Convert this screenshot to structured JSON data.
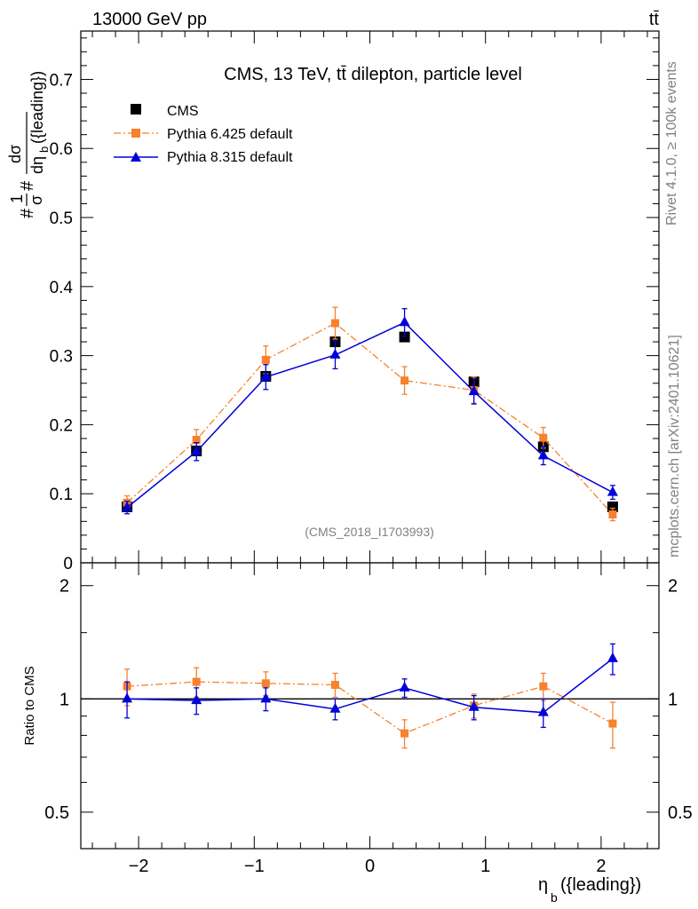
{
  "header": {
    "left": "13000 GeV pp",
    "right": "tt̄"
  },
  "side_labels": {
    "rivet": "Rivet 4.1.0, ≥ 100k events",
    "mcplots": "mcplots.cern.ch [arXiv:2401.10621]"
  },
  "colors": {
    "cms": "#000000",
    "pythia6": "#f7812c",
    "pythia8": "#0000d8",
    "watermark": "#808080"
  },
  "chart_data": [
    {
      "type": "scatter",
      "panel": "main",
      "title": "CMS, 13 TeV, tt̄ dilepton, particle level",
      "watermark": "(CMS_2018_I1703993)",
      "xlim": [
        -2.5,
        2.5
      ],
      "ylim": [
        0,
        0.77
      ],
      "ylabel_parts": {
        "prefix": "#",
        "frac_num": "1",
        "frac_den": "σ",
        "mid": "#",
        "d_num": "dσ",
        "d_den": "dη",
        "sub": "b",
        "tail": "({leading})"
      },
      "y_ticks": [
        {
          "v": 0.1,
          "label": "0.1"
        },
        {
          "v": 0.2,
          "label": "0.2"
        },
        {
          "v": 0.3,
          "label": "0.3"
        },
        {
          "v": 0.4,
          "label": "0.4"
        },
        {
          "v": 0.5,
          "label": "0.5"
        },
        {
          "v": 0.6,
          "label": "0.6"
        },
        {
          "v": 0.7,
          "label": "0.7"
        },
        {
          "v": 0.0,
          "label": "0"
        }
      ],
      "x": [
        -2.1,
        -1.5,
        -0.9,
        -0.3,
        0.3,
        0.9,
        1.5,
        2.1
      ],
      "series": [
        {
          "name": "CMS",
          "style": "points",
          "values": [
            0.081,
            0.162,
            0.27,
            0.32,
            0.327,
            0.262,
            0.168,
            0.081
          ],
          "errors": [
            0.003,
            0.004,
            0.006,
            0.006,
            0.006,
            0.005,
            0.004,
            0.003
          ]
        },
        {
          "name": "Pythia 6.425 default",
          "style": "dashdot-square",
          "values": [
            0.087,
            0.178,
            0.294,
            0.347,
            0.264,
            0.25,
            0.181,
            0.07
          ],
          "errors": [
            0.01,
            0.015,
            0.02,
            0.023,
            0.02,
            0.019,
            0.015,
            0.009
          ]
        },
        {
          "name": "Pythia 8.315 default",
          "style": "solid-triangle",
          "values": [
            0.08,
            0.161,
            0.269,
            0.301,
            0.348,
            0.248,
            0.155,
            0.102
          ],
          "errors": [
            0.009,
            0.013,
            0.018,
            0.02,
            0.02,
            0.018,
            0.013,
            0.01
          ]
        }
      ]
    },
    {
      "type": "scatter",
      "panel": "ratio",
      "ylabel": "Ratio to CMS",
      "xlabel_parts": {
        "main": "η",
        "sub": "b",
        "tail": "({leading})"
      },
      "xlim": [
        -2.5,
        2.5
      ],
      "ylim": [
        0.4,
        2.3
      ],
      "y_ticks": [
        {
          "v": 0.5,
          "label": "0.5"
        },
        {
          "v": 1,
          "label": "1"
        },
        {
          "v": 2,
          "label": "2"
        }
      ],
      "x_ticks": [
        {
          "v": -2,
          "label": "−2"
        },
        {
          "v": -1,
          "label": "−1"
        },
        {
          "v": 0,
          "label": "0"
        },
        {
          "v": 1,
          "label": "1"
        },
        {
          "v": 2,
          "label": "2"
        }
      ],
      "reference_line": 1,
      "x": [
        -2.1,
        -1.5,
        -0.9,
        -0.3,
        0.3,
        0.9,
        1.5,
        2.1
      ],
      "series": [
        {
          "name": "Pythia 6.425 default",
          "style": "dashdot-square",
          "values": [
            1.08,
            1.11,
            1.1,
            1.09,
            0.81,
            0.96,
            1.08,
            0.86
          ],
          "errors": [
            0.12,
            0.1,
            0.08,
            0.08,
            0.07,
            0.07,
            0.09,
            0.12
          ]
        },
        {
          "name": "Pythia 8.315 default",
          "style": "solid-triangle",
          "values": [
            1.0,
            0.99,
            1.0,
            0.94,
            1.07,
            0.95,
            0.92,
            1.28
          ],
          "errors": [
            0.11,
            0.08,
            0.07,
            0.06,
            0.06,
            0.07,
            0.08,
            0.12
          ]
        }
      ]
    }
  ]
}
